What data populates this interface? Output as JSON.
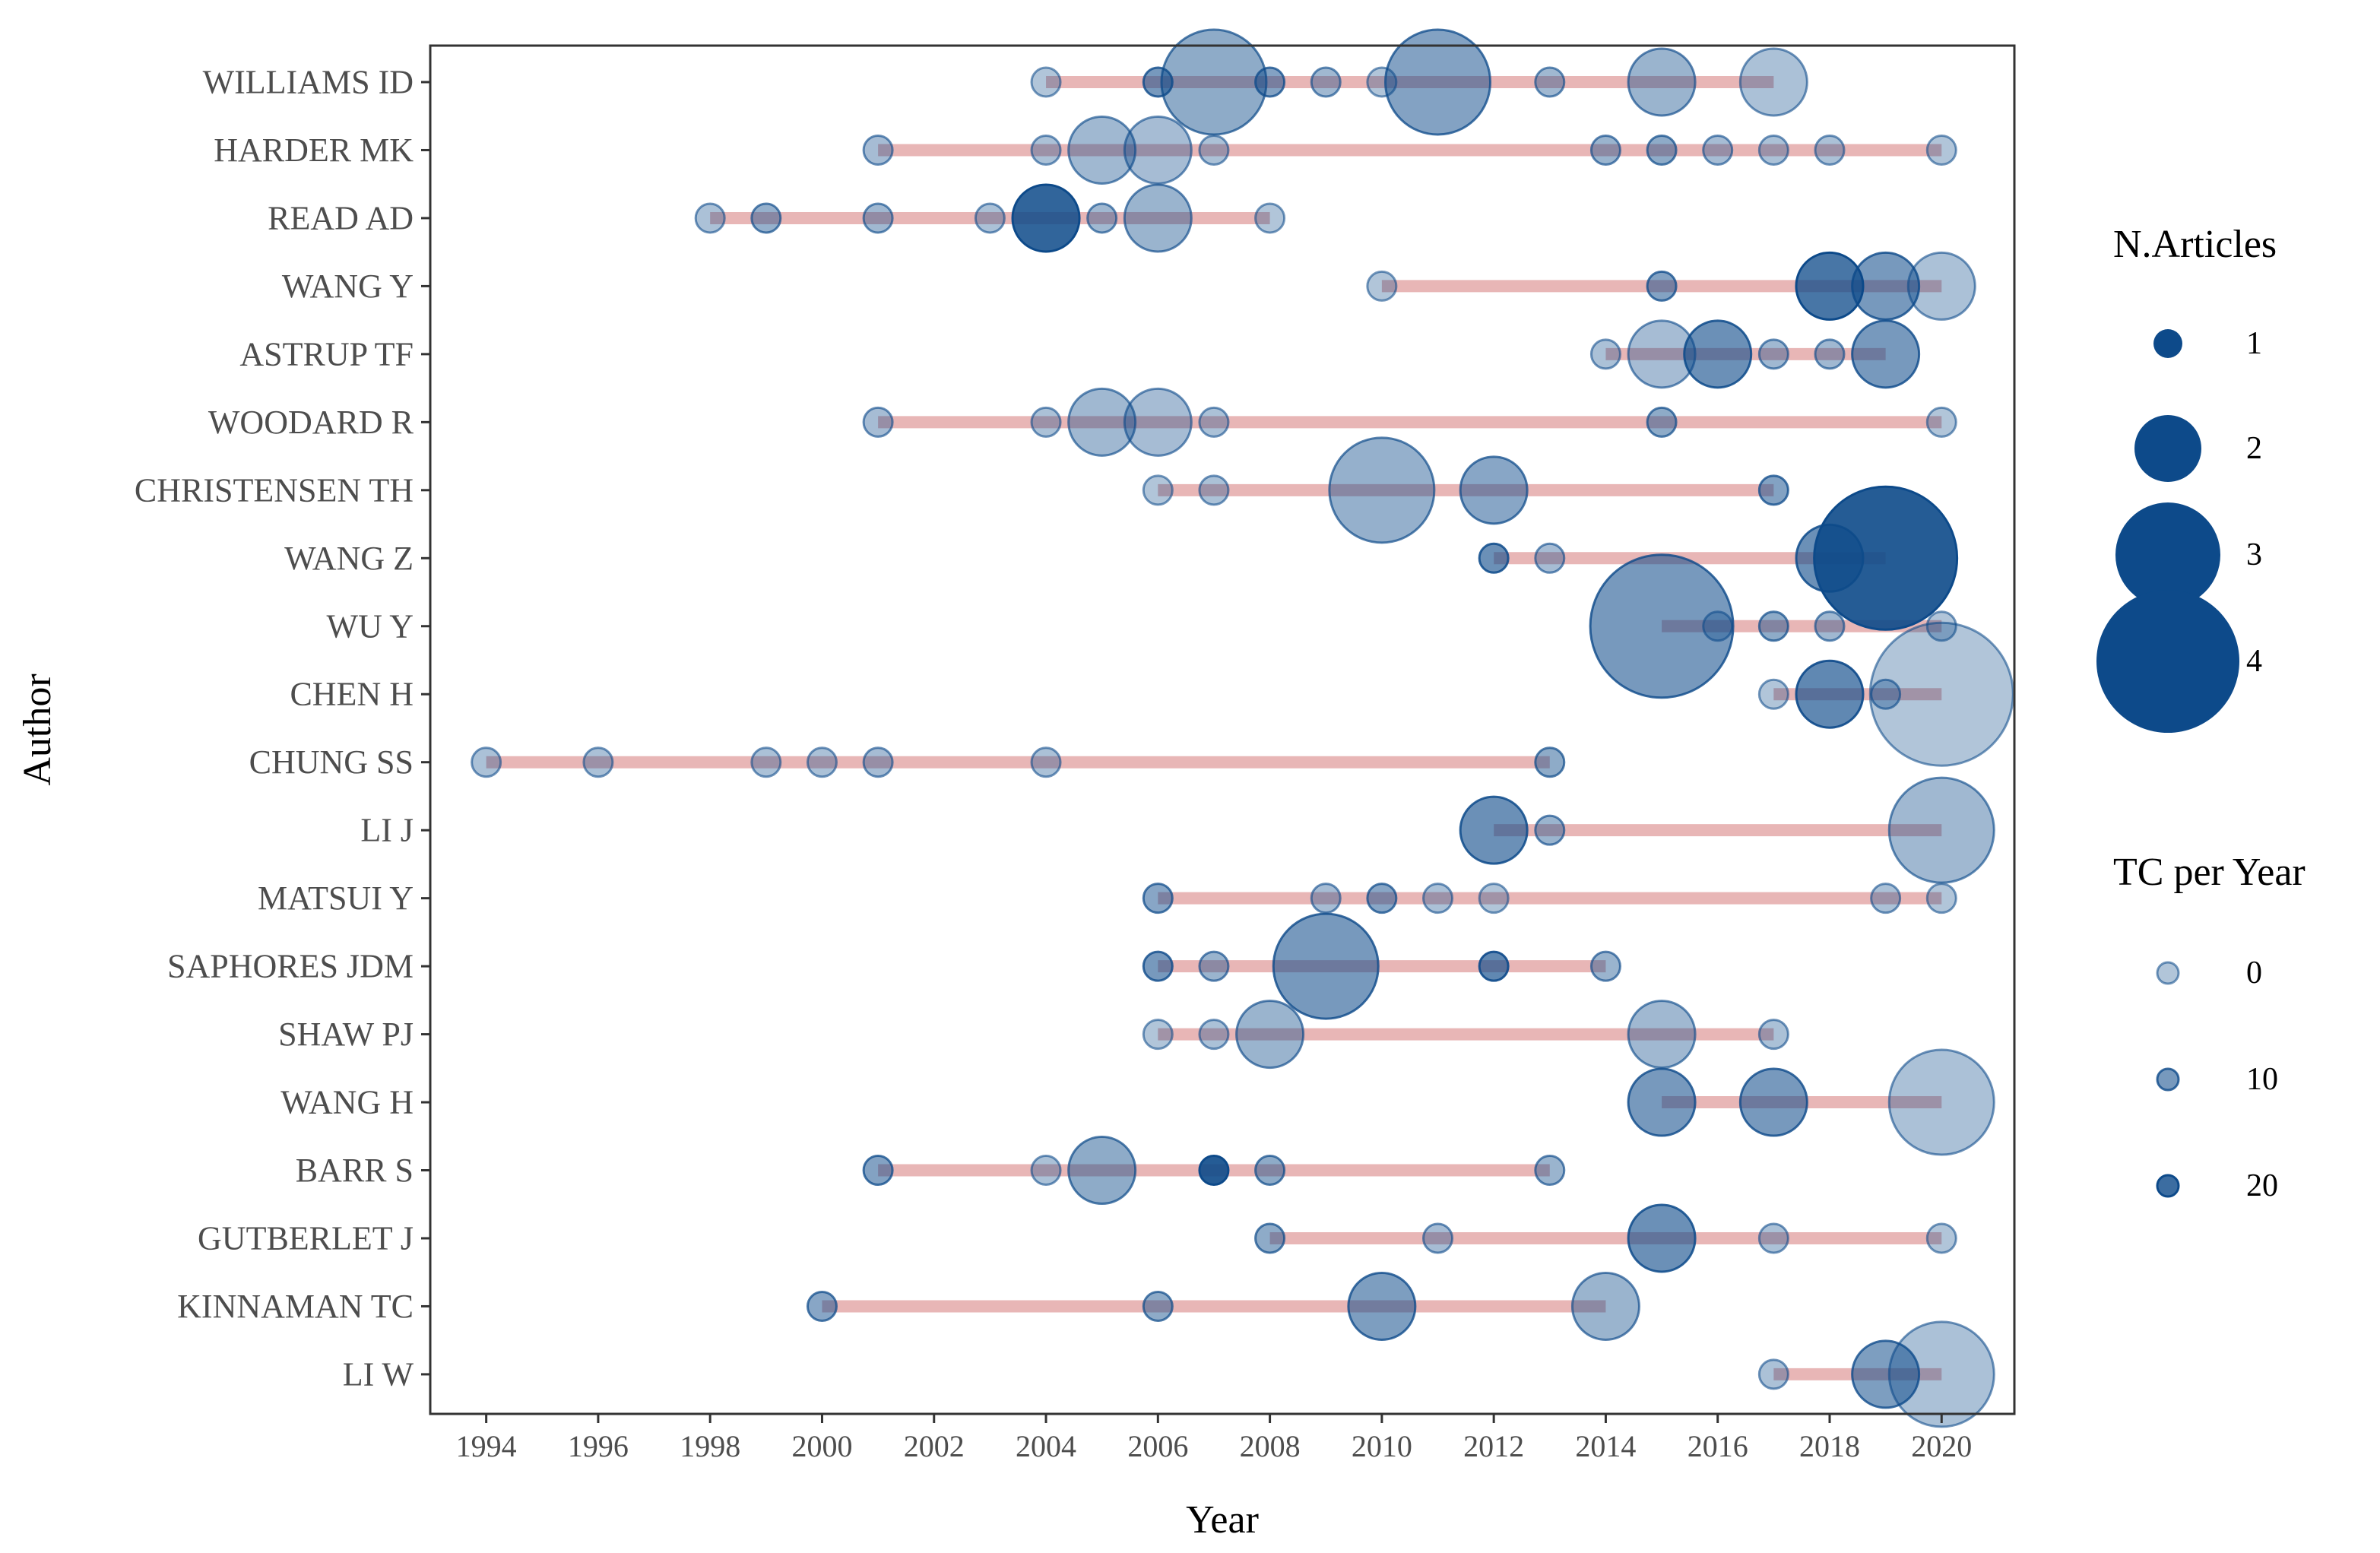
{
  "chart_data": {
    "type": "scatter",
    "title": "",
    "xlabel": "Year",
    "ylabel": "Author",
    "xlim": [
      1993,
      2021.3
    ],
    "x_ticks": [
      1994,
      1996,
      1998,
      2000,
      2002,
      2004,
      2006,
      2008,
      2010,
      2012,
      2014,
      2016,
      2018,
      2020
    ],
    "colors": {
      "bubble": "#0d4a8a",
      "line": "#d98585",
      "axis": "#333333",
      "tick_text": "#4d4d4d"
    },
    "authors": [
      {
        "name": "WILLIAMS ID",
        "line": [
          2004,
          2017
        ],
        "points": [
          {
            "year": 2004,
            "articles": 1,
            "tc": 0
          },
          {
            "year": 2006,
            "articles": 1,
            "tc": 10
          },
          {
            "year": 2007,
            "articles": 3,
            "tc": 6
          },
          {
            "year": 2008,
            "articles": 1,
            "tc": 8
          },
          {
            "year": 2009,
            "articles": 1,
            "tc": 3
          },
          {
            "year": 2010,
            "articles": 1,
            "tc": 0
          },
          {
            "year": 2011,
            "articles": 3,
            "tc": 8
          },
          {
            "year": 2013,
            "articles": 1,
            "tc": 3
          },
          {
            "year": 2015,
            "articles": 2,
            "tc": 4
          },
          {
            "year": 2017,
            "articles": 2,
            "tc": 1
          }
        ]
      },
      {
        "name": "HARDER MK",
        "line": [
          2001,
          2020
        ],
        "points": [
          {
            "year": 2001,
            "articles": 1,
            "tc": 2
          },
          {
            "year": 2004,
            "articles": 1,
            "tc": 1
          },
          {
            "year": 2005,
            "articles": 2,
            "tc": 3
          },
          {
            "year": 2006,
            "articles": 2,
            "tc": 2
          },
          {
            "year": 2007,
            "articles": 1,
            "tc": 1
          },
          {
            "year": 2014,
            "articles": 1,
            "tc": 4
          },
          {
            "year": 2015,
            "articles": 1,
            "tc": 6
          },
          {
            "year": 2016,
            "articles": 1,
            "tc": 2
          },
          {
            "year": 2017,
            "articles": 1,
            "tc": 1
          },
          {
            "year": 2018,
            "articles": 1,
            "tc": 1
          },
          {
            "year": 2020,
            "articles": 1,
            "tc": 0
          }
        ]
      },
      {
        "name": "READ AD",
        "line": [
          1998,
          2008
        ],
        "points": [
          {
            "year": 1998,
            "articles": 1,
            "tc": 1
          },
          {
            "year": 1999,
            "articles": 1,
            "tc": 5
          },
          {
            "year": 2001,
            "articles": 1,
            "tc": 3
          },
          {
            "year": 2003,
            "articles": 1,
            "tc": 1
          },
          {
            "year": 2004,
            "articles": 2,
            "tc": 22
          },
          {
            "year": 2005,
            "articles": 1,
            "tc": 3
          },
          {
            "year": 2006,
            "articles": 2,
            "tc": 4
          },
          {
            "year": 2008,
            "articles": 1,
            "tc": 0
          }
        ]
      },
      {
        "name": "WANG Y",
        "line": [
          2010,
          2020
        ],
        "points": [
          {
            "year": 2010,
            "articles": 1,
            "tc": 0
          },
          {
            "year": 2015,
            "articles": 1,
            "tc": 8
          },
          {
            "year": 2018,
            "articles": 2,
            "tc": 18
          },
          {
            "year": 2019,
            "articles": 2,
            "tc": 10
          },
          {
            "year": 2020,
            "articles": 2,
            "tc": 1
          }
        ]
      },
      {
        "name": "ASTRUP TF",
        "line": [
          2014,
          2019
        ],
        "points": [
          {
            "year": 2014,
            "articles": 1,
            "tc": 1
          },
          {
            "year": 2015,
            "articles": 2,
            "tc": 2
          },
          {
            "year": 2016,
            "articles": 2,
            "tc": 12
          },
          {
            "year": 2017,
            "articles": 1,
            "tc": 3
          },
          {
            "year": 2018,
            "articles": 1,
            "tc": 3
          },
          {
            "year": 2019,
            "articles": 2,
            "tc": 10
          }
        ]
      },
      {
        "name": "WOODARD R",
        "line": [
          2001,
          2020
        ],
        "points": [
          {
            "year": 2001,
            "articles": 1,
            "tc": 2
          },
          {
            "year": 2004,
            "articles": 1,
            "tc": 1
          },
          {
            "year": 2005,
            "articles": 2,
            "tc": 3
          },
          {
            "year": 2006,
            "articles": 2,
            "tc": 2
          },
          {
            "year": 2007,
            "articles": 1,
            "tc": 1
          },
          {
            "year": 2015,
            "articles": 1,
            "tc": 6
          },
          {
            "year": 2020,
            "articles": 1,
            "tc": 0
          }
        ]
      },
      {
        "name": "CHRISTENSEN TH",
        "line": [
          2006,
          2017
        ],
        "points": [
          {
            "year": 2006,
            "articles": 1,
            "tc": 0
          },
          {
            "year": 2007,
            "articles": 1,
            "tc": 1
          },
          {
            "year": 2010,
            "articles": 3,
            "tc": 5
          },
          {
            "year": 2012,
            "articles": 2,
            "tc": 7
          },
          {
            "year": 2017,
            "articles": 1,
            "tc": 8
          }
        ]
      },
      {
        "name": "WANG Z",
        "line": [
          2012,
          2019
        ],
        "points": [
          {
            "year": 2012,
            "articles": 1,
            "tc": 12
          },
          {
            "year": 2013,
            "articles": 1,
            "tc": 2
          },
          {
            "year": 2018,
            "articles": 2,
            "tc": 12
          },
          {
            "year": 2019,
            "articles": 4,
            "tc": 24
          }
        ]
      },
      {
        "name": "WU Y",
        "line": [
          2015,
          2020
        ],
        "points": [
          {
            "year": 2015,
            "articles": 4,
            "tc": 10
          },
          {
            "year": 2016,
            "articles": 1,
            "tc": 1
          },
          {
            "year": 2017,
            "articles": 1,
            "tc": 6
          },
          {
            "year": 2018,
            "articles": 1,
            "tc": 3
          },
          {
            "year": 2020,
            "articles": 1,
            "tc": 0
          }
        ]
      },
      {
        "name": "CHEN H",
        "line": [
          2017,
          2020
        ],
        "points": [
          {
            "year": 2017,
            "articles": 1,
            "tc": 0
          },
          {
            "year": 2018,
            "articles": 2,
            "tc": 14
          },
          {
            "year": 2019,
            "articles": 1,
            "tc": 2
          },
          {
            "year": 2020,
            "articles": 4,
            "tc": 0
          }
        ]
      },
      {
        "name": "CHUNG SS",
        "line": [
          1994,
          2013
        ],
        "points": [
          {
            "year": 1994,
            "articles": 1,
            "tc": 1
          },
          {
            "year": 1996,
            "articles": 1,
            "tc": 1
          },
          {
            "year": 1999,
            "articles": 1,
            "tc": 1
          },
          {
            "year": 2000,
            "articles": 1,
            "tc": 1
          },
          {
            "year": 2001,
            "articles": 1,
            "tc": 2
          },
          {
            "year": 2004,
            "articles": 1,
            "tc": 1
          },
          {
            "year": 2013,
            "articles": 1,
            "tc": 6
          }
        ]
      },
      {
        "name": "LI J",
        "line": [
          2012,
          2020
        ],
        "points": [
          {
            "year": 2012,
            "articles": 2,
            "tc": 12
          },
          {
            "year": 2013,
            "articles": 1,
            "tc": 4
          },
          {
            "year": 2020,
            "articles": 3,
            "tc": 3
          }
        ]
      },
      {
        "name": "MATSUI Y",
        "line": [
          2006,
          2020
        ],
        "points": [
          {
            "year": 2006,
            "articles": 1,
            "tc": 7
          },
          {
            "year": 2009,
            "articles": 1,
            "tc": 2
          },
          {
            "year": 2010,
            "articles": 1,
            "tc": 7
          },
          {
            "year": 2011,
            "articles": 1,
            "tc": 1
          },
          {
            "year": 2012,
            "articles": 1,
            "tc": 0
          },
          {
            "year": 2019,
            "articles": 1,
            "tc": 1
          },
          {
            "year": 2020,
            "articles": 1,
            "tc": 0
          }
        ]
      },
      {
        "name": "SAPHORES JDM",
        "line": [
          2006,
          2014
        ],
        "points": [
          {
            "year": 2006,
            "articles": 1,
            "tc": 10
          },
          {
            "year": 2007,
            "articles": 1,
            "tc": 4
          },
          {
            "year": 2009,
            "articles": 3,
            "tc": 10
          },
          {
            "year": 2012,
            "articles": 1,
            "tc": 14
          },
          {
            "year": 2014,
            "articles": 1,
            "tc": 4
          }
        ]
      },
      {
        "name": "SHAW PJ",
        "line": [
          2006,
          2017
        ],
        "points": [
          {
            "year": 2006,
            "articles": 1,
            "tc": 0
          },
          {
            "year": 2007,
            "articles": 1,
            "tc": 1
          },
          {
            "year": 2008,
            "articles": 2,
            "tc": 4
          },
          {
            "year": 2015,
            "articles": 2,
            "tc": 3
          },
          {
            "year": 2017,
            "articles": 1,
            "tc": 1
          }
        ]
      },
      {
        "name": "WANG H",
        "line": [
          2015,
          2020
        ],
        "points": [
          {
            "year": 2015,
            "articles": 2,
            "tc": 10
          },
          {
            "year": 2017,
            "articles": 2,
            "tc": 10
          },
          {
            "year": 2020,
            "articles": 3,
            "tc": 1
          }
        ]
      },
      {
        "name": "BARR S",
        "line": [
          2001,
          2013
        ],
        "points": [
          {
            "year": 2001,
            "articles": 1,
            "tc": 8
          },
          {
            "year": 2004,
            "articles": 1,
            "tc": 1
          },
          {
            "year": 2005,
            "articles": 2,
            "tc": 6
          },
          {
            "year": 2007,
            "articles": 1,
            "tc": 24
          },
          {
            "year": 2008,
            "articles": 1,
            "tc": 6
          },
          {
            "year": 2013,
            "articles": 1,
            "tc": 4
          }
        ]
      },
      {
        "name": "GUTBERLET J",
        "line": [
          2008,
          2020
        ],
        "points": [
          {
            "year": 2008,
            "articles": 1,
            "tc": 6
          },
          {
            "year": 2011,
            "articles": 1,
            "tc": 2
          },
          {
            "year": 2015,
            "articles": 2,
            "tc": 12
          },
          {
            "year": 2017,
            "articles": 1,
            "tc": 1
          },
          {
            "year": 2020,
            "articles": 1,
            "tc": 0
          }
        ]
      },
      {
        "name": "KINNAMAN TC",
        "line": [
          2000,
          2014
        ],
        "points": [
          {
            "year": 2000,
            "articles": 1,
            "tc": 7
          },
          {
            "year": 2006,
            "articles": 1,
            "tc": 6
          },
          {
            "year": 2010,
            "articles": 2,
            "tc": 9
          },
          {
            "year": 2014,
            "articles": 2,
            "tc": 4
          }
        ]
      },
      {
        "name": "LI W",
        "line": [
          2017,
          2020
        ],
        "points": [
          {
            "year": 2017,
            "articles": 1,
            "tc": 1
          },
          {
            "year": 2019,
            "articles": 2,
            "tc": 9
          },
          {
            "year": 2020,
            "articles": 3,
            "tc": 1
          }
        ]
      }
    ],
    "legend_size": {
      "title": "N.Articles",
      "values": [
        1,
        2,
        3,
        4
      ]
    },
    "legend_color": {
      "title": "TC per Year",
      "values": [
        0,
        10,
        20
      ]
    }
  }
}
